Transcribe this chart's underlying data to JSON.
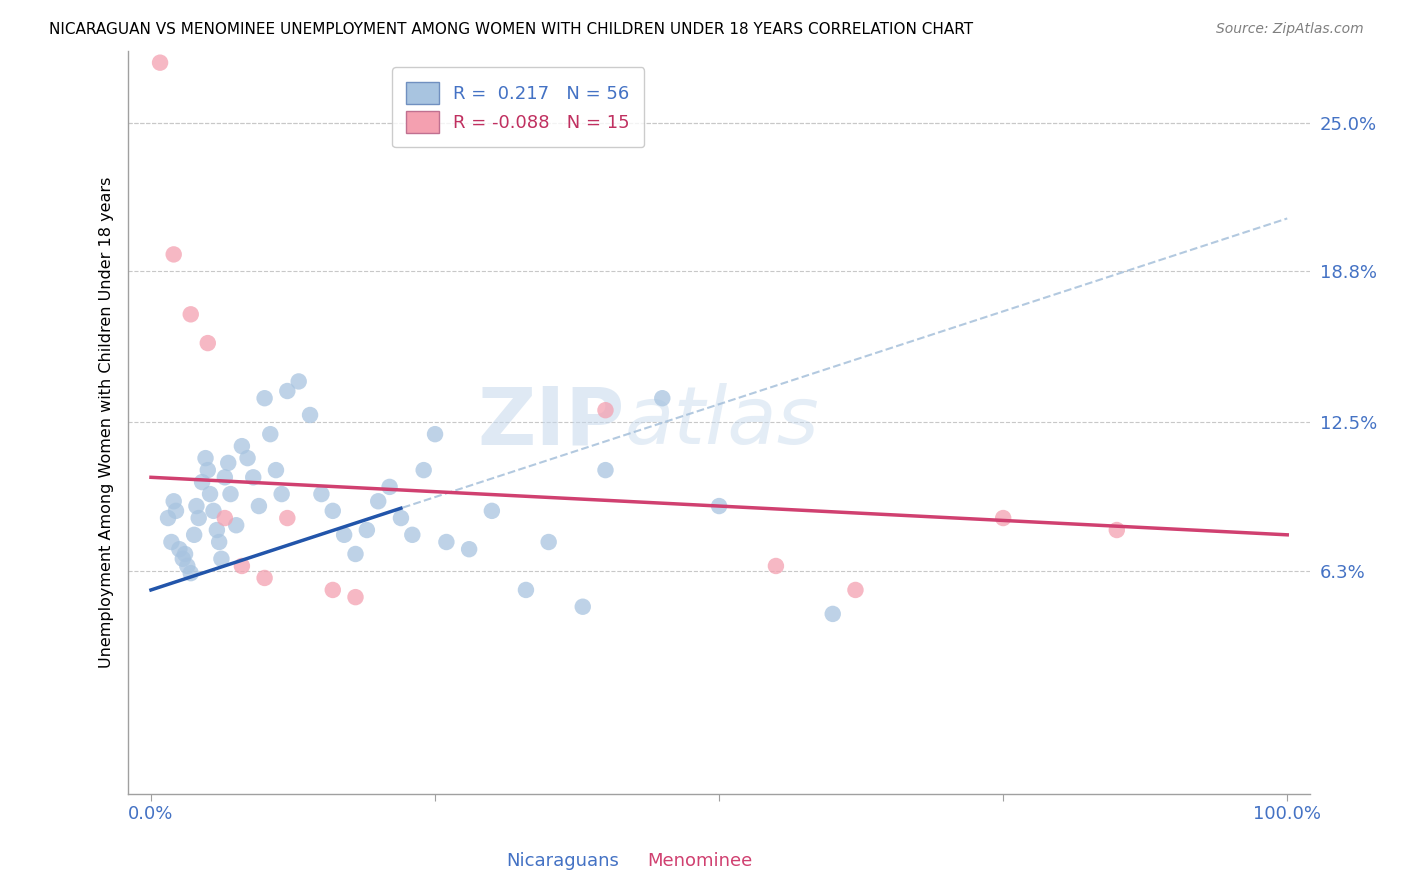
{
  "title": "NICARAGUAN VS MENOMINEE UNEMPLOYMENT AMONG WOMEN WITH CHILDREN UNDER 18 YEARS CORRELATION CHART",
  "source": "Source: ZipAtlas.com",
  "xlabel_nicaraguans": "Nicaraguans",
  "xlabel_menominee": "Menominee",
  "ylabel": "Unemployment Among Women with Children Under 18 years",
  "xlim": [
    0,
    100
  ],
  "ylim": [
    -3,
    28
  ],
  "ytick_labels": [
    "6.3%",
    "12.5%",
    "18.8%",
    "25.0%"
  ],
  "ytick_values": [
    6.3,
    12.5,
    18.8,
    25.0
  ],
  "r_nicaraguan": 0.217,
  "n_nicaraguan": 56,
  "r_menominee": -0.088,
  "n_menominee": 15,
  "nicaraguan_color": "#a8c4e0",
  "menominee_color": "#f4a0b0",
  "trend_nicaraguan_solid_color": "#2255aa",
  "trend_nicaraguan_dash_color": "#a0bcd8",
  "trend_menominee_color": "#d04070",
  "background_color": "#ffffff",
  "watermark_zip": "ZIP",
  "watermark_atlas": "atlas",
  "nicaraguan_x": [
    1.5,
    1.8,
    2.0,
    2.2,
    2.5,
    2.8,
    3.0,
    3.2,
    3.5,
    3.8,
    4.0,
    4.2,
    4.5,
    4.8,
    5.0,
    5.2,
    5.5,
    5.8,
    6.0,
    6.2,
    6.5,
    6.8,
    7.0,
    7.5,
    8.0,
    8.5,
    9.0,
    9.5,
    10.0,
    10.5,
    11.0,
    11.5,
    12.0,
    13.0,
    14.0,
    15.0,
    16.0,
    17.0,
    18.0,
    19.0,
    20.0,
    21.0,
    22.0,
    23.0,
    24.0,
    25.0,
    26.0,
    28.0,
    30.0,
    33.0,
    35.0,
    38.0,
    40.0,
    45.0,
    50.0,
    60.0
  ],
  "nicaraguan_y": [
    8.5,
    7.5,
    9.2,
    8.8,
    7.2,
    6.8,
    7.0,
    6.5,
    6.2,
    7.8,
    9.0,
    8.5,
    10.0,
    11.0,
    10.5,
    9.5,
    8.8,
    8.0,
    7.5,
    6.8,
    10.2,
    10.8,
    9.5,
    8.2,
    11.5,
    11.0,
    10.2,
    9.0,
    13.5,
    12.0,
    10.5,
    9.5,
    13.8,
    14.2,
    12.8,
    9.5,
    8.8,
    7.8,
    7.0,
    8.0,
    9.2,
    9.8,
    8.5,
    7.8,
    10.5,
    12.0,
    7.5,
    7.2,
    8.8,
    5.5,
    7.5,
    4.8,
    10.5,
    13.5,
    9.0,
    4.5
  ],
  "menominee_x": [
    0.8,
    2.0,
    3.5,
    5.0,
    6.5,
    8.0,
    10.0,
    12.0,
    16.0,
    18.0,
    40.0,
    55.0,
    62.0,
    75.0,
    85.0
  ],
  "menominee_y": [
    27.5,
    19.5,
    17.0,
    15.8,
    8.5,
    6.5,
    6.0,
    8.5,
    5.5,
    5.2,
    13.0,
    6.5,
    5.5,
    8.5,
    8.0
  ]
}
